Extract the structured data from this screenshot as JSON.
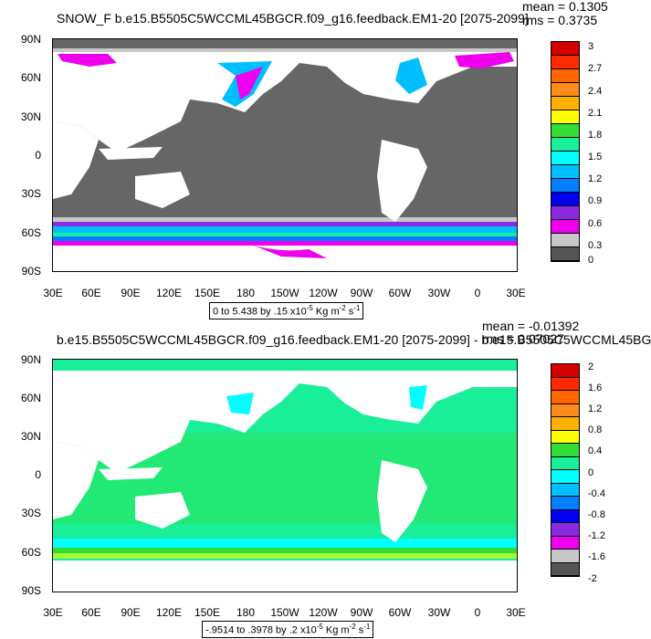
{
  "panel1": {
    "title": "SNOW_F b.e15.B5505C5WCCML45BGCR.f09_g16.feedback.EM1-20 [2075-2099]",
    "mean": "mean = 0.1305",
    "rms": "rms = 0.3735",
    "range_main": "0 to 5.438 by .15 x10",
    "range_exp": "-5",
    "range_units": " Kg m",
    "range_units_exp": "-2",
    "range_units_tail": " s",
    "range_units_exp2": "-1",
    "colorbar_labels": [
      "3",
      "2.7",
      "2.4",
      "2.1",
      "1.8",
      "1.5",
      "1.2",
      "0.9",
      "0.6",
      "0.3",
      "0"
    ],
    "colorbar_colors": [
      "#d40000",
      "#ff2a00",
      "#ff6600",
      "#ff8c1a",
      "#ffb000",
      "#ffff00",
      "#33dd33",
      "#19ee99",
      "#00ffff",
      "#00bfff",
      "#0080ff",
      "#0000ee",
      "#8a2be2",
      "#ee00ee",
      "#c8c8c8",
      "#555555"
    ]
  },
  "panel2": {
    "title": "b.e15.B5505C5WCCML45BGCR.f09_g16.feedback.EM1-20 [2075-2099] - b.e15.B5505C5WCCML45BG",
    "mean": "mean = -0.01392",
    "rms": "rms = 0.07027",
    "range_main": "-.9514 to .3978 by .2 x10",
    "range_exp": "-5",
    "range_units": " Kg m",
    "range_units_exp": "-2",
    "range_units_tail": " s",
    "range_units_exp2": "-1",
    "colorbar_labels": [
      "2",
      "1.6",
      "1.2",
      "0.8",
      "0.4",
      "0",
      "-0.4",
      "-0.8",
      "-1.2",
      "-1.6",
      "-2"
    ],
    "colorbar_colors": [
      "#d40000",
      "#ff2a00",
      "#ff6600",
      "#ff8c1a",
      "#ffb000",
      "#ffff00",
      "#33dd33",
      "#19ee99",
      "#00ffff",
      "#00bfff",
      "#0080ff",
      "#0000ee",
      "#8a2be2",
      "#ee00ee",
      "#c8c8c8",
      "#555555"
    ]
  },
  "lat_labels": [
    "90N",
    "60N",
    "30N",
    "0",
    "30S",
    "60S",
    "90S"
  ],
  "lon_labels": [
    "30E",
    "60E",
    "90E",
    "120E",
    "150E",
    "180",
    "150W",
    "120W",
    "90W",
    "60W",
    "30W",
    "0",
    "30E"
  ],
  "colors": {
    "ocean_gray": "#666666",
    "land_white": "#ffffff",
    "diff_background": "#19ee99",
    "diff_green": "#33dd33",
    "snow_magenta": "#ee00ee",
    "snow_blue": "#00bfff"
  }
}
